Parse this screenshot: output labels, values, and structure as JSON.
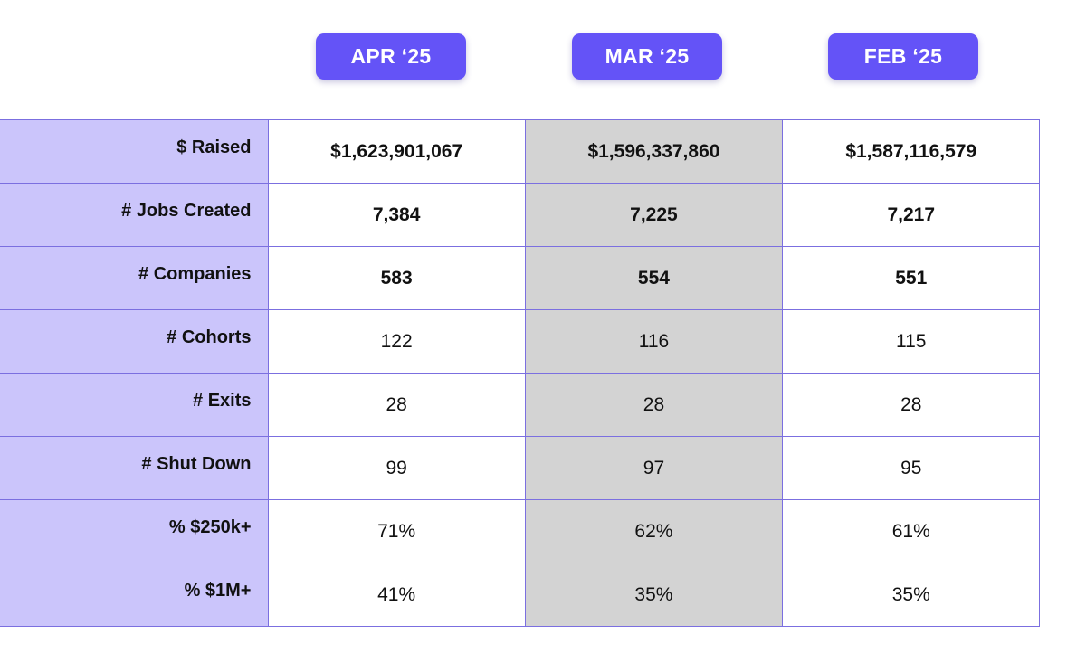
{
  "columns": [
    "APR ‘25",
    "MAR ‘25",
    "FEB ‘25"
  ],
  "rows": [
    {
      "label": "$ Raised",
      "values": [
        "$1,623,901,067",
        "$1,596,337,860",
        "$1,587,116,579"
      ],
      "bold": true
    },
    {
      "label": "# Jobs Created",
      "values": [
        "7,384",
        "7,225",
        "7,217"
      ],
      "bold": true
    },
    {
      "label": "# Companies",
      "values": [
        "583",
        "554",
        "551"
      ],
      "bold": true
    },
    {
      "label": "# Cohorts",
      "values": [
        "122",
        "116",
        "115"
      ],
      "bold": false
    },
    {
      "label": "# Exits",
      "values": [
        "28",
        "28",
        "28"
      ],
      "bold": false
    },
    {
      "label": "# Shut Down",
      "values": [
        "99",
        "97",
        "95"
      ],
      "bold": false
    },
    {
      "label": "% $250k+",
      "values": [
        "71%",
        "62%",
        "61%"
      ],
      "bold": false
    },
    {
      "label": "% $1M+",
      "values": [
        "41%",
        "35%",
        "35%"
      ],
      "bold": false
    }
  ],
  "colors": {
    "header_pill": "#6453f7",
    "label_column_bg": "#cbc5fb",
    "highlight_column_bg": "#d3d3d3",
    "grid_line": "#7b6fe0"
  }
}
